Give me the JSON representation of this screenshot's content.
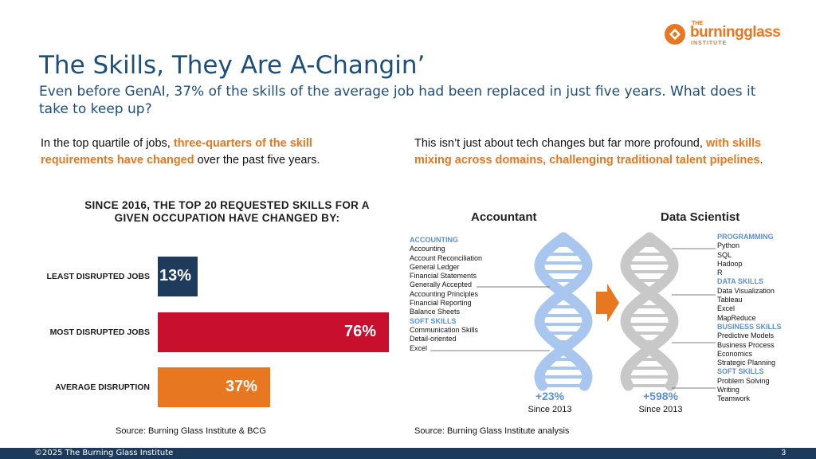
{
  "header": {
    "title": "The Skills, They Are A-Changin’",
    "subtitle": "Even before GenAI, 37% of the skills of the average job had been replaced in just five years. What does it take to keep up?"
  },
  "logo": {
    "top": "THE",
    "name": "burningglass",
    "bottom": "INSTITUTE"
  },
  "left_text": {
    "before": "In the top quartile of jobs, ",
    "highlight": "three-quarters of the skill requirements have changed",
    "after": " over the past five years."
  },
  "right_text": {
    "before": "This isn’t just about tech changes but far more profound, ",
    "highlight": "with skills mixing across domains, challenging traditional talent pipelines",
    "after": "."
  },
  "chart_data": {
    "type": "bar",
    "title": "SINCE 2016, THE TOP 20 REQUESTED SKILLS FOR A GIVEN OCCUPATION HAVE CHANGED BY:",
    "categories": [
      "LEAST DISRUPTED JOBS",
      "MOST DISRUPTED JOBS",
      "AVERAGE DISRUPTION"
    ],
    "values": [
      13,
      76,
      37
    ],
    "value_labels": [
      "13%",
      "76%",
      "37%"
    ],
    "colors": [
      "#1f3b5c",
      "#c8102e",
      "#e87722"
    ],
    "xlim": [
      0,
      76
    ],
    "orientation": "horizontal"
  },
  "sources": {
    "left": "Source:  Burning Glass Institute & BCG",
    "right": "Source:  Burning Glass Institute analysis"
  },
  "dna": {
    "arrow_color": "#e87722",
    "left": {
      "title": "Accountant",
      "groups": [
        {
          "category": "ACCOUNTING",
          "items": [
            "Accounting",
            "Account Reconciliation",
            "General Ledger",
            "Financial Statements",
            "Generally Accepted",
            "Accounting Principles",
            "Financial Reporting",
            "Balance Sheets"
          ]
        },
        {
          "category": "SOFT SKILLS",
          "items": [
            "Communication Skills",
            "Detail-oriented",
            "Excel"
          ]
        }
      ],
      "change": "+23%",
      "since": "Since 2013",
      "color": "#a9c6ee"
    },
    "right": {
      "title": "Data Scientist",
      "groups": [
        {
          "category": "PROGRAMMING",
          "items": [
            "Python",
            "SQL",
            "Hadoop",
            "R"
          ]
        },
        {
          "category": "DATA SKILLS",
          "items": [
            "Data Visualization",
            "Tableau",
            "Excel",
            "MapReduce"
          ]
        },
        {
          "category": "BUSINESS SKILLS",
          "items": [
            "Predictive Models",
            "Business Process",
            "Economics",
            "Strategic Planning"
          ]
        },
        {
          "category": "SOFT SKILLS",
          "items": [
            "Problem Solving",
            "Writing",
            "Teamwork"
          ]
        }
      ],
      "change": "+598%",
      "since": "Since 2013",
      "color": "#c8c8c8"
    }
  },
  "footer": {
    "copyright": "©2025 The Burning Glass Institute",
    "page": "3"
  }
}
